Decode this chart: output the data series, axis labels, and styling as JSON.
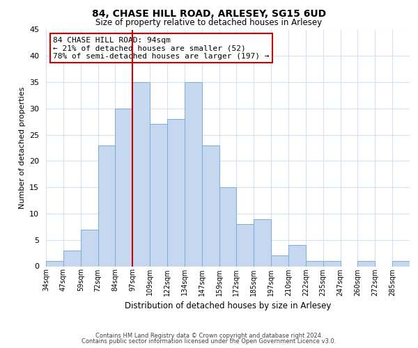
{
  "title": "84, CHASE HILL ROAD, ARLESEY, SG15 6UD",
  "subtitle": "Size of property relative to detached houses in Arlesey",
  "xlabel": "Distribution of detached houses by size in Arlesey",
  "ylabel": "Number of detached properties",
  "bar_color": "#c5d8f0",
  "bar_edge_color": "#7badd4",
  "bins": [
    "34sqm",
    "47sqm",
    "59sqm",
    "72sqm",
    "84sqm",
    "97sqm",
    "109sqm",
    "122sqm",
    "134sqm",
    "147sqm",
    "159sqm",
    "172sqm",
    "185sqm",
    "197sqm",
    "210sqm",
    "222sqm",
    "235sqm",
    "247sqm",
    "260sqm",
    "272sqm",
    "285sqm"
  ],
  "counts": [
    1,
    3,
    7,
    23,
    30,
    35,
    27,
    28,
    35,
    23,
    15,
    8,
    9,
    2,
    4,
    1,
    1,
    0,
    1,
    0,
    1
  ],
  "vline_color": "#cc0000",
  "ylim": [
    0,
    45
  ],
  "annotation_line1": "84 CHASE HILL ROAD: 94sqm",
  "annotation_line2": "← 21% of detached houses are smaller (52)",
  "annotation_line3": "78% of semi-detached houses are larger (197) →",
  "annotation_box_edge": "#cc0000",
  "footer1": "Contains HM Land Registry data © Crown copyright and database right 2024.",
  "footer2": "Contains public sector information licensed under the Open Government Licence v3.0.",
  "background_color": "#ffffff",
  "grid_color": "#d4dff0",
  "yticks": [
    0,
    5,
    10,
    15,
    20,
    25,
    30,
    35,
    40,
    45
  ]
}
